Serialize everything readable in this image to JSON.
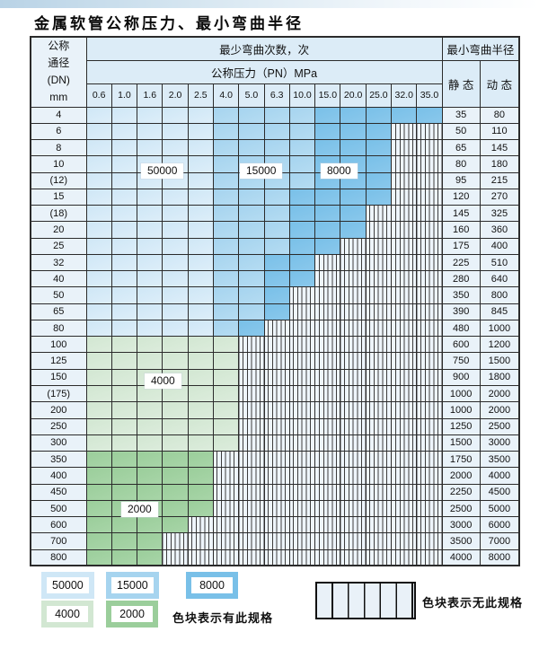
{
  "title": "金属软管公称压力、最小弯曲半径",
  "colors": {
    "blue_light": "#cfe7f6",
    "blue_mid": "#a6d4ef",
    "blue_dark": "#79c0e8",
    "green_light": "#d2e7d2",
    "green_mid": "#9bce9b",
    "stripe_bg": "#eef5fb",
    "stripe_line": "#3d3d3d",
    "header_bg": "#dcecf7",
    "label_bg": "#e9f2f9",
    "border": "#2b2b2b"
  },
  "table": {
    "corner": [
      "公称",
      "通径",
      "(DN)",
      "mm"
    ],
    "bend_cycles_header": "最少弯曲次数，次",
    "pressure_header": "公称压力（PN）MPa",
    "radius_header": "最小弯曲半径",
    "static_header": "静 态",
    "dynamic_header": "动 态",
    "pressure_values": [
      "0.6",
      "1.0",
      "1.6",
      "2.0",
      "2.5",
      "4.0",
      "5.0",
      "6.3",
      "10.0",
      "15.0",
      "20.0",
      "25.0",
      "32.0",
      "35.0"
    ],
    "region_labels": [
      {
        "text": "50000"
      },
      {
        "text": "15000"
      },
      {
        "text": "8000"
      },
      {
        "text": "4000"
      },
      {
        "text": "2000"
      }
    ],
    "cell_legend_note": "L=50000区 M=15000区 D=8000区 G=4000区 E=2000区 S=无此规格",
    "rows": [
      {
        "dn": "4",
        "cells": "LLLLLMMMMDDDDD",
        "static": "35",
        "dynamic": "80"
      },
      {
        "dn": "6",
        "cells": "LLLLLMMMMDDDSS",
        "static": "50",
        "dynamic": "110"
      },
      {
        "dn": "8",
        "cells": "LLLLLMMMMDDDSS",
        "static": "65",
        "dynamic": "145"
      },
      {
        "dn": "10",
        "cells": "LLLLLMMMMDDDSS",
        "static": "80",
        "dynamic": "180"
      },
      {
        "dn": "(12)",
        "cells": "LLLLLMMMMDDDSS",
        "static": "95",
        "dynamic": "215"
      },
      {
        "dn": "15",
        "cells": "LLLLLMMMDDDDSS",
        "static": "120",
        "dynamic": "270"
      },
      {
        "dn": "(18)",
        "cells": "LLLLLMMMDDDSSS",
        "static": "145",
        "dynamic": "325"
      },
      {
        "dn": "20",
        "cells": "LLLLLMMMDDDSSS",
        "static": "160",
        "dynamic": "360"
      },
      {
        "dn": "25",
        "cells": "LLLLLMMMDDSSSS",
        "static": "175",
        "dynamic": "400"
      },
      {
        "dn": "32",
        "cells": "LLLLLMMDDSSSSS",
        "static": "225",
        "dynamic": "510"
      },
      {
        "dn": "40",
        "cells": "LLLLLMMDDSSSSS",
        "static": "280",
        "dynamic": "640"
      },
      {
        "dn": "50",
        "cells": "LLLLLMMDSSSSSS",
        "static": "350",
        "dynamic": "800"
      },
      {
        "dn": "65",
        "cells": "LLLLLMMDSSSSSS",
        "static": "390",
        "dynamic": "845"
      },
      {
        "dn": "80",
        "cells": "LLLLLMDSSSSSSS",
        "static": "480",
        "dynamic": "1000"
      },
      {
        "dn": "100",
        "cells": "GGGGGGSSSSSSSS",
        "static": "600",
        "dynamic": "1200"
      },
      {
        "dn": "125",
        "cells": "GGGGGGSSSSSSSS",
        "static": "750",
        "dynamic": "1500"
      },
      {
        "dn": "150",
        "cells": "GGGGGGSSSSSSSS",
        "static": "900",
        "dynamic": "1800"
      },
      {
        "dn": "(175)",
        "cells": "GGGGGGSSSSSSSS",
        "static": "1000",
        "dynamic": "2000"
      },
      {
        "dn": "200",
        "cells": "GGGGGGSSSSSSSS",
        "static": "1000",
        "dynamic": "2000"
      },
      {
        "dn": "250",
        "cells": "GGGGGGSSSSSSSS",
        "static": "1250",
        "dynamic": "2500"
      },
      {
        "dn": "300",
        "cells": "GGGGGGSSSSSSSS",
        "static": "1500",
        "dynamic": "3000"
      },
      {
        "dn": "350",
        "cells": "EEEEESSSSSSSSS",
        "static": "1750",
        "dynamic": "3500"
      },
      {
        "dn": "400",
        "cells": "EEEEESSSSSSSSS",
        "static": "2000",
        "dynamic": "4000"
      },
      {
        "dn": "450",
        "cells": "EEEEESSSSSSSSS",
        "static": "2250",
        "dynamic": "4500"
      },
      {
        "dn": "500",
        "cells": "EEEEESSSSSSSSS",
        "static": "2500",
        "dynamic": "5000"
      },
      {
        "dn": "600",
        "cells": "EEEESSSSSSSSSS",
        "static": "3000",
        "dynamic": "6000"
      },
      {
        "dn": "700",
        "cells": "EEESSSSSSSSSSS",
        "static": "3500",
        "dynamic": "7000"
      },
      {
        "dn": "800",
        "cells": "EEESSSSSSSSSSS",
        "static": "4000",
        "dynamic": "8000"
      }
    ]
  },
  "legend": {
    "items": [
      {
        "label": "50000"
      },
      {
        "label": "15000"
      },
      {
        "label": "8000"
      },
      {
        "label": "4000"
      },
      {
        "label": "2000"
      }
    ],
    "has_spec_text": "色块表示有此规格",
    "no_spec_text": "色块表示无此规格"
  }
}
